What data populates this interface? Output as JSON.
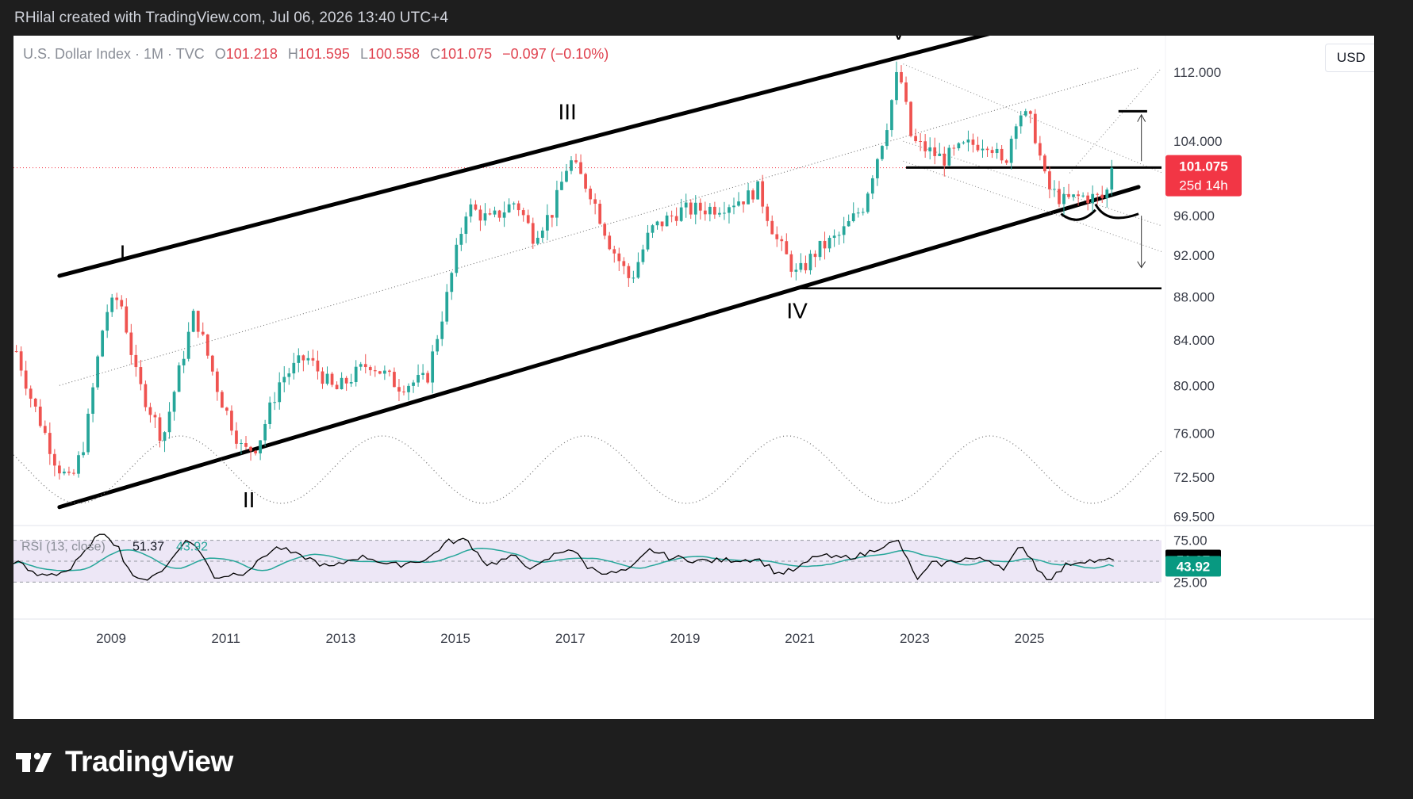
{
  "header": {
    "caption": "RHilal created with TradingView.com, Jul 06, 2026 13:40 UTC+4"
  },
  "legend": {
    "title": "U.S. Dollar Index · 1M · TVC",
    "open_label": "O",
    "open": "101.218",
    "high_label": "H",
    "high": "101.595",
    "low_label": "L",
    "low": "100.558",
    "close_label": "C",
    "close": "101.075",
    "change": "−0.097 (−0.10%)"
  },
  "currency_button": "USD",
  "price_badge": {
    "price": "101.075",
    "countdown": "25d 14h"
  },
  "rsi": {
    "title": "RSI (13, close)",
    "value": "51.37",
    "ma_value": "43.92"
  },
  "brand": {
    "name": "TradingView"
  },
  "colors": {
    "up": "#26a69a",
    "down": "#ef5350",
    "rsi_line": "#000000",
    "rsi_ma": "#26a69a",
    "rsi_band": "#ede7f6",
    "badge": "#f23645",
    "ma_badge": "#089981"
  },
  "chart_data": {
    "type": "candlestick",
    "interval": "1M",
    "x_ticks": [
      "2009",
      "2011",
      "2013",
      "2015",
      "2017",
      "2019",
      "2021",
      "2023",
      "2025"
    ],
    "y_ticks": [
      "112.000",
      "104.000",
      "96.000",
      "92.000",
      "88.000",
      "84.000",
      "80.000",
      "76.000",
      "72.500",
      "69.500"
    ],
    "x_range": [
      2007.3,
      2027.3
    ],
    "y_range": [
      69.0,
      115.5
    ],
    "y_scale": "log",
    "anchors": [
      [
        2007.35,
        83.0
      ],
      [
        2007.6,
        79.0
      ],
      [
        2008.05,
        73.5
      ],
      [
        2008.3,
        72.0
      ],
      [
        2008.55,
        75.5
      ],
      [
        2008.9,
        86.5
      ],
      [
        2009.15,
        88.0
      ],
      [
        2009.45,
        80.5
      ],
      [
        2009.9,
        75.5
      ],
      [
        2010.45,
        86.5
      ],
      [
        2010.9,
        79.0
      ],
      [
        2011.3,
        74.5
      ],
      [
        2011.55,
        75.0
      ],
      [
        2011.95,
        80.5
      ],
      [
        2012.4,
        82.5
      ],
      [
        2012.9,
        79.5
      ],
      [
        2013.5,
        82.0
      ],
      [
        2014.0,
        80.0
      ],
      [
        2014.5,
        80.5
      ],
      [
        2014.85,
        88.0
      ],
      [
        2015.2,
        97.0
      ],
      [
        2015.6,
        95.5
      ],
      [
        2016.05,
        97.5
      ],
      [
        2016.35,
        94.0
      ],
      [
        2016.7,
        96.5
      ],
      [
        2016.98,
        102.0
      ],
      [
        2017.35,
        98.5
      ],
      [
        2017.7,
        93.0
      ],
      [
        2018.05,
        89.5
      ],
      [
        2018.4,
        94.5
      ],
      [
        2018.9,
        96.5
      ],
      [
        2019.5,
        96.8
      ],
      [
        2020.1,
        98.0
      ],
      [
        2020.25,
        99.0
      ],
      [
        2020.6,
        93.5
      ],
      [
        2020.95,
        90.0
      ],
      [
        2021.3,
        92.5
      ],
      [
        2021.7,
        94.0
      ],
      [
        2022.1,
        97.0
      ],
      [
        2022.5,
        105.5
      ],
      [
        2022.72,
        112.5
      ],
      [
        2022.95,
        104.0
      ],
      [
        2023.5,
        102.0
      ],
      [
        2023.9,
        103.5
      ],
      [
        2024.3,
        104.0
      ],
      [
        2024.55,
        101.0
      ],
      [
        2024.8,
        107.5
      ],
      [
        2025.05,
        106.0
      ],
      [
        2025.3,
        99.0
      ],
      [
        2025.6,
        97.5
      ],
      [
        2025.9,
        98.0
      ],
      [
        2026.3,
        97.8
      ],
      [
        2026.5,
        101.075
      ]
    ],
    "last_price": 101.075,
    "wave_labels": [
      {
        "label": "I",
        "x": 2009.2,
        "y": 91.5
      },
      {
        "label": "II",
        "x": 2011.4,
        "y": 70.2
      },
      {
        "label": "III",
        "x": 2016.95,
        "y": 106.5
      },
      {
        "label": "IV",
        "x": 2020.95,
        "y": 86.0
      },
      {
        "label": "V",
        "x": 2022.72,
        "y": 116.0
      }
    ],
    "rsi_range": [
      25,
      75
    ],
    "rsi_ticks": [
      "75.00",
      "25.00"
    ],
    "rsi_last": 51.37,
    "rsi_ma_last": 43.92
  }
}
